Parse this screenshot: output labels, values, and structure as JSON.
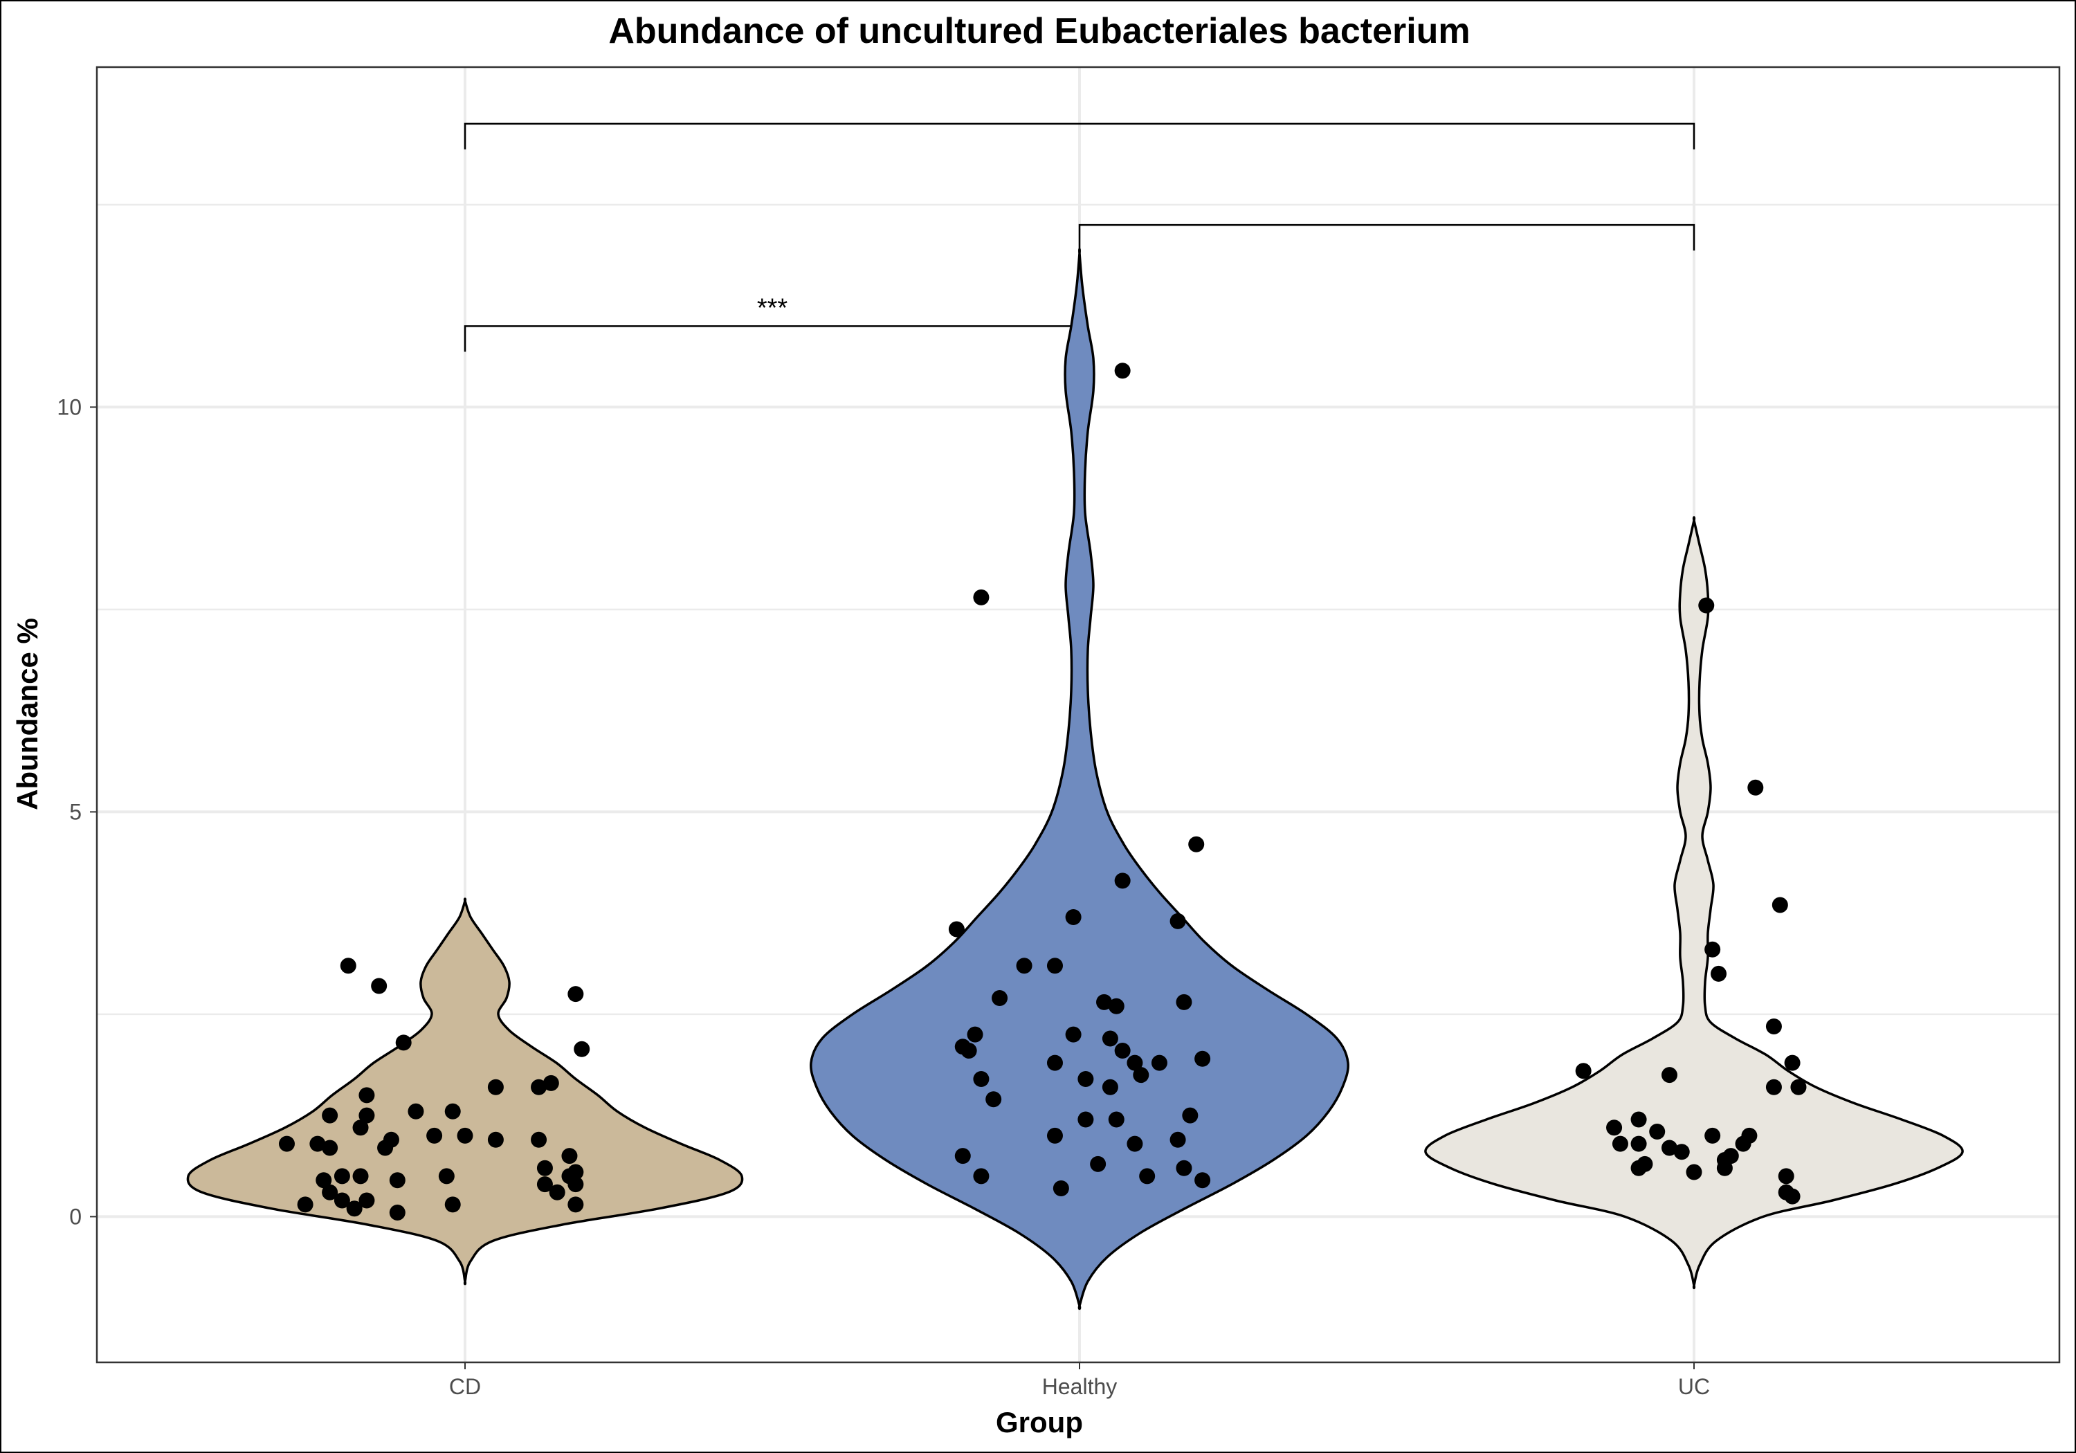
{
  "chart_data": {
    "type": "violin",
    "title": "Abundance of uncultured Eubacteriales bacterium",
    "xlabel": "Group",
    "ylabel": "Abundance %",
    "categories": [
      "CD",
      "Healthy",
      "UC"
    ],
    "ylim": [
      -1.8,
      14.2
    ],
    "yticks": [
      0,
      5,
      10
    ],
    "grid": true,
    "legend": "none",
    "groups": [
      {
        "name": "CD",
        "color": "#cbb99a",
        "violin_range": [
          -0.8,
          3.9
        ],
        "density": [
          [
            -0.8,
            0.0
          ],
          [
            -0.55,
            0.02
          ],
          [
            -0.3,
            0.1
          ],
          [
            -0.1,
            0.35
          ],
          [
            0.1,
            0.7
          ],
          [
            0.3,
            0.95
          ],
          [
            0.5,
            1.0
          ],
          [
            0.7,
            0.92
          ],
          [
            0.9,
            0.78
          ],
          [
            1.1,
            0.65
          ],
          [
            1.3,
            0.55
          ],
          [
            1.5,
            0.48
          ],
          [
            1.7,
            0.4
          ],
          [
            1.9,
            0.33
          ],
          [
            2.1,
            0.24
          ],
          [
            2.3,
            0.16
          ],
          [
            2.5,
            0.12
          ],
          [
            2.7,
            0.15
          ],
          [
            2.9,
            0.16
          ],
          [
            3.1,
            0.14
          ],
          [
            3.3,
            0.1
          ],
          [
            3.5,
            0.06
          ],
          [
            3.7,
            0.02
          ],
          [
            3.9,
            0.0
          ]
        ],
        "points": [
          [
            -0.19,
            3.1
          ],
          [
            -0.14,
            2.85
          ],
          [
            0.18,
            2.75
          ],
          [
            -0.1,
            2.15
          ],
          [
            0.19,
            2.07
          ],
          [
            0.14,
            1.65
          ],
          [
            0.12,
            1.6
          ],
          [
            0.05,
            1.6
          ],
          [
            -0.16,
            1.5
          ],
          [
            -0.08,
            1.3
          ],
          [
            -0.22,
            1.25
          ],
          [
            -0.16,
            1.25
          ],
          [
            0.0,
            1.0
          ],
          [
            0.05,
            0.95
          ],
          [
            -0.02,
            1.3
          ],
          [
            -0.12,
            0.95
          ],
          [
            -0.05,
            1.0
          ],
          [
            0.12,
            0.95
          ],
          [
            -0.13,
            0.85
          ],
          [
            -0.17,
            1.1
          ],
          [
            -0.22,
            0.85
          ],
          [
            -0.29,
            0.9
          ],
          [
            -0.24,
            0.9
          ],
          [
            0.17,
            0.75
          ],
          [
            0.13,
            0.6
          ],
          [
            0.18,
            0.55
          ],
          [
            0.17,
            0.5
          ],
          [
            -0.03,
            0.5
          ],
          [
            0.18,
            0.4
          ],
          [
            -0.11,
            0.45
          ],
          [
            0.13,
            0.4
          ],
          [
            0.15,
            0.3
          ],
          [
            -0.23,
            0.45
          ],
          [
            -0.2,
            0.5
          ],
          [
            -0.17,
            0.5
          ],
          [
            -0.22,
            0.3
          ],
          [
            -0.2,
            0.2
          ],
          [
            -0.26,
            0.15
          ],
          [
            -0.18,
            0.1
          ],
          [
            0.18,
            0.15
          ],
          [
            -0.16,
            0.2
          ],
          [
            -0.02,
            0.15
          ],
          [
            -0.11,
            0.05
          ]
        ]
      },
      {
        "name": "Healthy",
        "color": "#6f8bbf",
        "violin_range": [
          -1.1,
          11.9
        ],
        "density": [
          [
            -1.1,
            0.0
          ],
          [
            -0.8,
            0.03
          ],
          [
            -0.5,
            0.1
          ],
          [
            -0.2,
            0.22
          ],
          [
            0.1,
            0.38
          ],
          [
            0.4,
            0.55
          ],
          [
            0.7,
            0.7
          ],
          [
            1.0,
            0.82
          ],
          [
            1.3,
            0.9
          ],
          [
            1.6,
            0.95
          ],
          [
            1.9,
            0.97
          ],
          [
            2.2,
            0.93
          ],
          [
            2.5,
            0.82
          ],
          [
            2.8,
            0.68
          ],
          [
            3.1,
            0.55
          ],
          [
            3.4,
            0.45
          ],
          [
            3.7,
            0.37
          ],
          [
            4.0,
            0.29
          ],
          [
            4.3,
            0.22
          ],
          [
            4.6,
            0.16
          ],
          [
            5.0,
            0.1
          ],
          [
            5.5,
            0.06
          ],
          [
            6.0,
            0.04
          ],
          [
            6.5,
            0.03
          ],
          [
            7.0,
            0.03
          ],
          [
            7.4,
            0.04
          ],
          [
            7.8,
            0.05
          ],
          [
            8.2,
            0.04
          ],
          [
            8.7,
            0.02
          ],
          [
            9.2,
            0.02
          ],
          [
            9.7,
            0.03
          ],
          [
            10.2,
            0.05
          ],
          [
            10.6,
            0.05
          ],
          [
            11.0,
            0.03
          ],
          [
            11.5,
            0.01
          ],
          [
            11.9,
            0.0
          ]
        ],
        "points": [
          [
            0.07,
            10.45
          ],
          [
            -0.16,
            7.65
          ],
          [
            0.19,
            4.6
          ],
          [
            0.07,
            4.15
          ],
          [
            -0.2,
            3.55
          ],
          [
            -0.01,
            3.7
          ],
          [
            0.16,
            3.65
          ],
          [
            -0.09,
            3.1
          ],
          [
            -0.04,
            3.1
          ],
          [
            -0.13,
            2.7
          ],
          [
            0.04,
            2.65
          ],
          [
            0.06,
            2.6
          ],
          [
            0.17,
            2.65
          ],
          [
            -0.17,
            2.25
          ],
          [
            -0.01,
            2.25
          ],
          [
            0.05,
            2.2
          ],
          [
            -0.18,
            2.05
          ],
          [
            0.07,
            2.05
          ],
          [
            -0.19,
            2.1
          ],
          [
            0.09,
            1.9
          ],
          [
            0.13,
            1.9
          ],
          [
            0.2,
            1.95
          ],
          [
            -0.04,
            1.9
          ],
          [
            0.1,
            1.75
          ],
          [
            -0.16,
            1.7
          ],
          [
            0.01,
            1.7
          ],
          [
            0.05,
            1.6
          ],
          [
            -0.14,
            1.45
          ],
          [
            0.18,
            1.25
          ],
          [
            0.01,
            1.2
          ],
          [
            0.06,
            1.2
          ],
          [
            -0.04,
            1.0
          ],
          [
            0.09,
            0.9
          ],
          [
            0.16,
            0.95
          ],
          [
            -0.19,
            0.75
          ],
          [
            0.03,
            0.65
          ],
          [
            0.17,
            0.6
          ],
          [
            -0.16,
            0.5
          ],
          [
            0.11,
            0.5
          ],
          [
            0.2,
            0.45
          ],
          [
            -0.03,
            0.35
          ]
        ]
      },
      {
        "name": "UC",
        "color": "#e9e6df",
        "violin_range": [
          -0.85,
          8.6
        ],
        "density": [
          [
            -0.85,
            0.0
          ],
          [
            -0.6,
            0.02
          ],
          [
            -0.3,
            0.08
          ],
          [
            0.0,
            0.25
          ],
          [
            0.2,
            0.5
          ],
          [
            0.4,
            0.72
          ],
          [
            0.6,
            0.88
          ],
          [
            0.8,
            0.97
          ],
          [
            1.0,
            0.9
          ],
          [
            1.2,
            0.75
          ],
          [
            1.4,
            0.58
          ],
          [
            1.6,
            0.44
          ],
          [
            1.8,
            0.34
          ],
          [
            2.0,
            0.26
          ],
          [
            2.2,
            0.15
          ],
          [
            2.4,
            0.06
          ],
          [
            2.6,
            0.04
          ],
          [
            2.9,
            0.04
          ],
          [
            3.2,
            0.05
          ],
          [
            3.5,
            0.05
          ],
          [
            3.8,
            0.06
          ],
          [
            4.1,
            0.07
          ],
          [
            4.4,
            0.05
          ],
          [
            4.7,
            0.03
          ],
          [
            5.0,
            0.05
          ],
          [
            5.3,
            0.06
          ],
          [
            5.6,
            0.05
          ],
          [
            5.9,
            0.03
          ],
          [
            6.2,
            0.02
          ],
          [
            6.6,
            0.02
          ],
          [
            7.0,
            0.03
          ],
          [
            7.4,
            0.05
          ],
          [
            7.7,
            0.05
          ],
          [
            8.0,
            0.04
          ],
          [
            8.3,
            0.02
          ],
          [
            8.6,
            0.0
          ]
        ],
        "points": [
          [
            0.02,
            7.55
          ],
          [
            0.1,
            5.3
          ],
          [
            0.14,
            3.85
          ],
          [
            0.03,
            3.3
          ],
          [
            0.04,
            3.0
          ],
          [
            0.13,
            1.6
          ],
          [
            0.17,
            1.6
          ],
          [
            0.16,
            1.9
          ],
          [
            0.13,
            2.35
          ],
          [
            -0.18,
            1.8
          ],
          [
            -0.04,
            1.75
          ],
          [
            -0.09,
            1.2
          ],
          [
            -0.13,
            1.1
          ],
          [
            -0.06,
            1.05
          ],
          [
            0.03,
            1.0
          ],
          [
            0.09,
            1.0
          ],
          [
            -0.12,
            0.9
          ],
          [
            -0.09,
            0.9
          ],
          [
            -0.04,
            0.85
          ],
          [
            0.08,
            0.9
          ],
          [
            -0.02,
            0.8
          ],
          [
            0.06,
            0.75
          ],
          [
            0.05,
            0.7
          ],
          [
            -0.08,
            0.65
          ],
          [
            0.05,
            0.6
          ],
          [
            -0.09,
            0.6
          ],
          [
            0.0,
            0.55
          ],
          [
            0.15,
            0.5
          ],
          [
            0.15,
            0.3
          ],
          [
            0.16,
            0.25
          ]
        ]
      }
    ],
    "comparisons": [
      {
        "groups": [
          "CD",
          "Healthy"
        ],
        "y": 11.0,
        "label": "***"
      },
      {
        "groups": [
          "Healthy",
          "UC"
        ],
        "y": 12.25,
        "label": ""
      },
      {
        "groups": [
          "CD",
          "UC"
        ],
        "y": 13.5,
        "label": ""
      }
    ]
  }
}
